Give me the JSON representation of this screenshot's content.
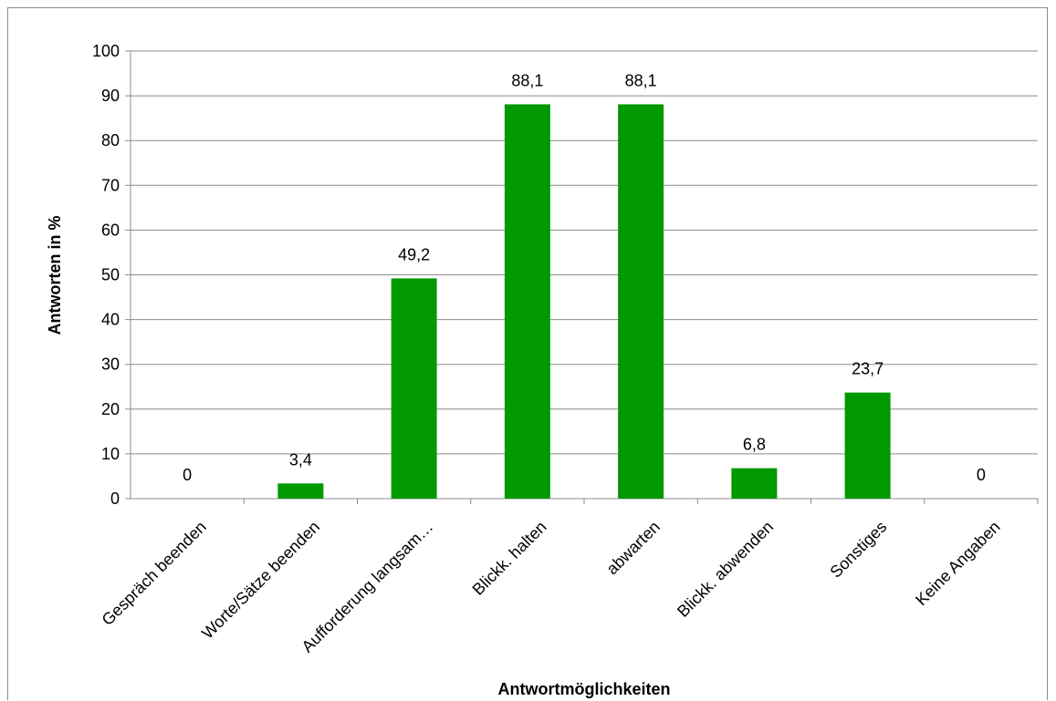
{
  "chart_data": {
    "type": "bar",
    "title": "",
    "xlabel": "Antwortmöglichkeiten",
    "ylabel": "Antworten in %",
    "ylim": [
      0,
      100
    ],
    "yticks": [
      "0",
      "10",
      "20",
      "30",
      "40",
      "50",
      "60",
      "70",
      "80",
      "90",
      "100"
    ],
    "grid": true,
    "legend": "none",
    "bar_color": "#009900",
    "categories": [
      "Gespräch beenden",
      "Worte/Sätze beenden",
      "Aufforderung langsam…",
      "Blickk. halten",
      "abwarten",
      "Blickk. abwenden",
      "Sonstiges",
      "Keine Angaben"
    ],
    "values": [
      0,
      3.4,
      49.2,
      88.1,
      88.1,
      6.8,
      23.7,
      0
    ],
    "data_labels": [
      "0",
      "3,4",
      "49,2",
      "88,1",
      "88,1",
      "6,8",
      "23,7",
      "0"
    ]
  }
}
